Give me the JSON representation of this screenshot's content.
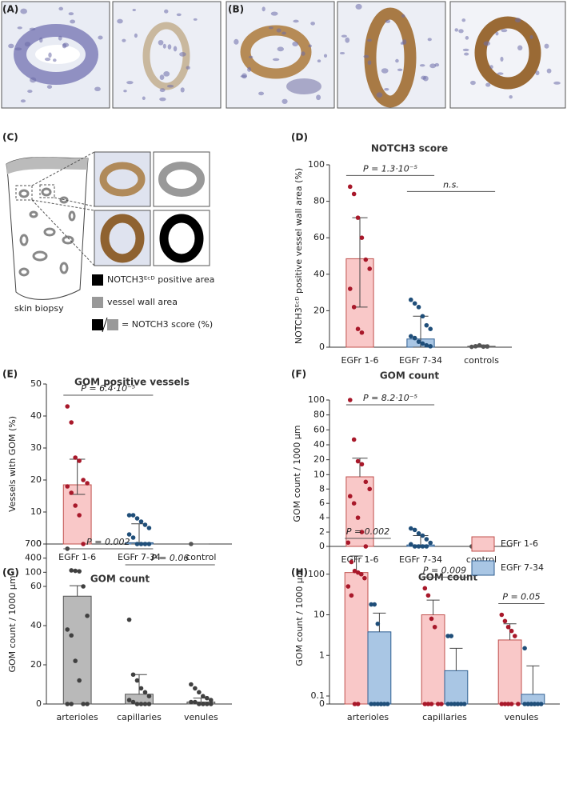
{
  "panel_labels": [
    "(A)",
    "(B)",
    "(C)",
    "(D)",
    "(E)",
    "(F)",
    "(G)",
    "(H)"
  ],
  "diagram": {
    "caption": "skin biopsy",
    "legend": [
      "NOTCH3ᴱᶜᴰ positive area",
      "vessel wall area",
      "= NOTCH3 score (%)"
    ]
  },
  "chart_data": [
    {
      "type": "bar",
      "title": "NOTCH3 score",
      "y_label": "NOTCH3ᴱᶜᴰ positive vessel wall area (%)",
      "categories": [
        "EGFr 1-6",
        "EGFr 7-34",
        "controls"
      ],
      "values": [
        48.5,
        4.5,
        0.5
      ],
      "lower": [
        22,
        0,
        0
      ],
      "upper": [
        71,
        17,
        1.2
      ],
      "colors": [
        "#f9c8c8",
        "#a9c6e4",
        "#bbbbbb"
      ],
      "edge_colors": [
        "#c0504d",
        "#2f5f92",
        "#555555"
      ],
      "point_colors": [
        "#a8182a",
        "#1f4e79",
        "#555555"
      ],
      "points": [
        [
          88,
          84,
          71,
          60,
          48,
          43,
          32,
          22,
          10,
          8
        ],
        [
          26,
          24,
          22,
          17,
          12,
          10,
          6,
          5,
          3,
          2,
          1,
          0.5
        ],
        [
          0.2,
          0.5,
          1,
          0.3,
          0.4
        ]
      ],
      "ylim": [
        0,
        100
      ],
      "yticks": [
        0,
        20,
        40,
        60,
        80,
        100
      ],
      "brackets": [
        {
          "text": "P = 1.3·10⁻⁵",
          "from": 0,
          "to": 1
        },
        {
          "text": "n.s.",
          "from": 1,
          "to": 2
        }
      ]
    },
    {
      "type": "bar",
      "title": "GOM positive vessels",
      "y_label": "Vessels with GOM (%)",
      "categories": [
        "EGFr 1-6",
        "EGFr 7-34",
        "control"
      ],
      "values": [
        18.5,
        0.4,
        0
      ],
      "lower": [
        15.5,
        0,
        0
      ],
      "upper": [
        26.5,
        6.3,
        0
      ],
      "colors": [
        "#f9c8c8",
        "#a9c6e4",
        "#bbbbbb"
      ],
      "edge_colors": [
        "#c0504d",
        "#2f5f92",
        "#555555"
      ],
      "point_colors": [
        "#a8182a",
        "#1f4e79",
        "#555555"
      ],
      "points": [
        [
          43,
          38,
          27,
          26,
          20,
          19,
          18,
          16,
          12,
          9,
          0
        ],
        [
          9,
          9,
          8,
          7,
          6,
          5,
          3,
          2,
          0,
          0,
          0,
          0
        ],
        [
          0
        ]
      ],
      "ylim": [
        0,
        50
      ],
      "yticks": [
        0,
        10,
        20,
        30,
        40,
        50
      ],
      "brackets": [
        {
          "text": "P = 6.4·10⁻⁵",
          "from": 0,
          "to": 1
        }
      ]
    },
    {
      "type": "bar",
      "title": "GOM count",
      "y_label": "GOM count / 1000 µm",
      "categories": [
        "EGFr 1-6",
        "EGFr 7-34",
        "control"
      ],
      "values": [
        9.7,
        0.2,
        0
      ],
      "upper": [
        22,
        1.5,
        0
      ],
      "colors": [
        "#f9c8c8",
        "#a9c6e4",
        "#bbbbbb"
      ],
      "edge_colors": [
        "#c0504d",
        "#2f5f92",
        "#555555"
      ],
      "point_colors": [
        "#a8182a",
        "#1f4e79",
        "#555555"
      ],
      "points": [
        [
          100,
          47,
          19,
          17,
          9,
          8,
          7,
          6,
          4,
          2,
          0
        ],
        [
          2.5,
          2.3,
          1.8,
          1.5,
          1,
          0.5,
          0.3,
          0,
          0,
          0,
          0
        ],
        [
          0
        ]
      ],
      "ylim": [
        0,
        100
      ],
      "yticks": [
        0,
        2,
        4,
        6,
        8,
        10,
        20,
        40,
        60,
        80,
        100
      ],
      "ybreak": 10,
      "brackets": [
        {
          "text": "P = 8.2·10⁻⁵",
          "from": 0,
          "to": 1
        }
      ]
    },
    {
      "type": "bar",
      "title": "GOM count",
      "y_label": "GOM count / 1000 µm",
      "categories": [
        "arterioles",
        "capillaries",
        "venules"
      ],
      "values": [
        55,
        5,
        1
      ],
      "upper": [
        62,
        15,
        3
      ],
      "colors": [
        "#b9b9b9",
        "#b9b9b9",
        "#b9b9b9"
      ],
      "edge_colors": [
        "#555555",
        "#555555",
        "#555555"
      ],
      "point_colors": [
        "#404040",
        "#404040",
        "#404040"
      ],
      "points": [
        [
          600,
          140,
          130,
          120,
          60,
          45,
          38,
          35,
          22,
          12,
          0,
          0,
          0,
          0
        ],
        [
          43,
          15,
          12,
          8,
          6,
          4,
          2,
          1,
          0,
          0,
          0,
          0
        ],
        [
          10,
          8,
          6,
          4,
          3,
          2,
          1,
          1,
          0,
          0,
          0,
          0
        ]
      ],
      "ylim": [
        0,
        700
      ],
      "yticks": [
        0,
        20,
        40,
        60,
        100,
        400,
        700
      ],
      "ybreak": 60,
      "brackets": [
        {
          "text": "P = 0.002",
          "from": 0,
          "to": 1
        },
        {
          "text": "P = 0.06",
          "from": 1,
          "to": 2
        }
      ]
    },
    {
      "type": "bar",
      "title": "GOM count",
      "y_label": "GOM count / 1000 µm",
      "categories": [
        "arterioles",
        "capillaries",
        "venules"
      ],
      "series": [
        {
          "name": "EGFr 1-6",
          "color": "#f9c8c8",
          "edge_color": "#c0504d",
          "point_color": "#a8182a",
          "values": [
            110,
            10,
            2.4
          ],
          "upper": [
            280,
            23,
            6
          ],
          "points": [
            [
              600,
              200,
              120,
              110,
              100,
              80,
              50,
              30,
              0,
              0
            ],
            [
              45,
              30,
              8,
              5,
              0,
              0,
              0,
              0,
              0
            ],
            [
              10,
              7,
              5,
              4,
              3,
              0,
              0,
              0,
              0,
              0
            ]
          ]
        },
        {
          "name": "EGFr 7-34",
          "color": "#a9c6e4",
          "edge_color": "#2f5f92",
          "point_color": "#1f4e79",
          "values": [
            3.8,
            0.42,
            0.11
          ],
          "upper": [
            11,
            1.5,
            0.55
          ],
          "points": [
            [
              18,
              18,
              6,
              0,
              0,
              0,
              0,
              0,
              0,
              0
            ],
            [
              3,
              3,
              0,
              0,
              0,
              0,
              0,
              0,
              0,
              0
            ],
            [
              1.5,
              0,
              0,
              0,
              0,
              0,
              0,
              0,
              0,
              0
            ]
          ]
        }
      ],
      "log": true,
      "ylim": [
        0,
        1000
      ],
      "yticks": [
        0,
        0.1,
        1,
        10,
        100
      ],
      "legend": "upper right",
      "brackets": [
        {
          "text": "P = 0.002",
          "group": 0
        },
        {
          "text": "P = 0.009",
          "group": 1
        },
        {
          "text": "P = 0.05",
          "group": 2
        }
      ]
    }
  ]
}
